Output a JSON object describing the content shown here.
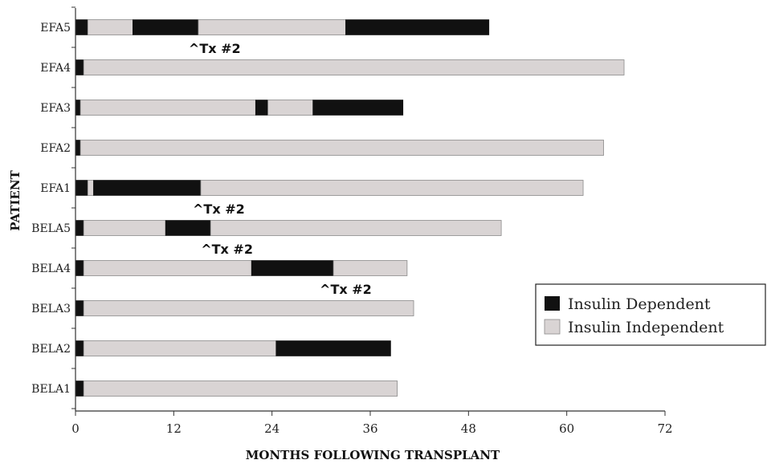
{
  "chart_data": {
    "type": "bar",
    "orientation": "horizontal",
    "stacked": true,
    "xlabel": "MONTHS FOLLOWING TRANSPLANT",
    "ylabel": "PATIENT",
    "xlim": [
      0,
      72
    ],
    "xticks": [
      0,
      12,
      24,
      36,
      48,
      60,
      72
    ],
    "categories": [
      "EFA5",
      "EFA4",
      "EFA3",
      "EFA2",
      "EFA1",
      "BELA5",
      "BELA4",
      "BELA3",
      "BELA2",
      "BELA1"
    ],
    "colors": {
      "Insulin Dependent": "#111111",
      "Insulin Independent": "#d9d4d4"
    },
    "legend": {
      "position": "right",
      "entries": [
        {
          "name": "Insulin Dependent",
          "color": "#111111"
        },
        {
          "name": "Insulin Independent",
          "color": "#d9d4d4"
        }
      ]
    },
    "rows": [
      {
        "patient": "EFA5",
        "segments": [
          {
            "status": "Insulin Dependent",
            "start": 0,
            "end": 1.5
          },
          {
            "status": "Insulin Independent",
            "start": 1.5,
            "end": 7
          },
          {
            "status": "Insulin Dependent",
            "start": 7,
            "end": 15
          },
          {
            "status": "Insulin Independent",
            "start": 15,
            "end": 33
          },
          {
            "status": "Insulin Dependent",
            "start": 33,
            "end": 50.5
          }
        ]
      },
      {
        "patient": "EFA4",
        "segments": [
          {
            "status": "Insulin Dependent",
            "start": 0,
            "end": 1
          },
          {
            "status": "Insulin Independent",
            "start": 1,
            "end": 67
          }
        ]
      },
      {
        "patient": "EFA3",
        "segments": [
          {
            "status": "Insulin Dependent",
            "start": 0,
            "end": 0.6
          },
          {
            "status": "Insulin Independent",
            "start": 0.6,
            "end": 22
          },
          {
            "status": "Insulin Dependent",
            "start": 22,
            "end": 23.5
          },
          {
            "status": "Insulin Independent",
            "start": 23.5,
            "end": 29
          },
          {
            "status": "Insulin Dependent",
            "start": 29,
            "end": 40
          }
        ]
      },
      {
        "patient": "EFA2",
        "segments": [
          {
            "status": "Insulin Dependent",
            "start": 0,
            "end": 0.6
          },
          {
            "status": "Insulin Independent",
            "start": 0.6,
            "end": 64.5
          }
        ]
      },
      {
        "patient": "EFA1",
        "segments": [
          {
            "status": "Insulin Dependent",
            "start": 0,
            "end": 1.5
          },
          {
            "status": "Insulin Independent",
            "start": 1.5,
            "end": 2.2
          },
          {
            "status": "Insulin Dependent",
            "start": 2.2,
            "end": 15.3
          },
          {
            "status": "Insulin Independent",
            "start": 15.3,
            "end": 62
          }
        ]
      },
      {
        "patient": "BELA5",
        "segments": [
          {
            "status": "Insulin Dependent",
            "start": 0,
            "end": 1
          },
          {
            "status": "Insulin Independent",
            "start": 1,
            "end": 11
          },
          {
            "status": "Insulin Dependent",
            "start": 11,
            "end": 16.5
          },
          {
            "status": "Insulin Independent",
            "start": 16.5,
            "end": 52
          }
        ]
      },
      {
        "patient": "BELA4",
        "segments": [
          {
            "status": "Insulin Dependent",
            "start": 0,
            "end": 1
          },
          {
            "status": "Insulin Independent",
            "start": 1,
            "end": 21.5
          },
          {
            "status": "Insulin Dependent",
            "start": 21.5,
            "end": 31.5
          },
          {
            "status": "Insulin Independent",
            "start": 31.5,
            "end": 40.5
          }
        ]
      },
      {
        "patient": "BELA3",
        "segments": [
          {
            "status": "Insulin Dependent",
            "start": 0,
            "end": 1
          },
          {
            "status": "Insulin Independent",
            "start": 1,
            "end": 41.3
          }
        ]
      },
      {
        "patient": "BELA2",
        "segments": [
          {
            "status": "Insulin Dependent",
            "start": 0,
            "end": 1
          },
          {
            "status": "Insulin Independent",
            "start": 1,
            "end": 24.5
          },
          {
            "status": "Insulin Dependent",
            "start": 24.5,
            "end": 38.5
          }
        ]
      },
      {
        "patient": "BELA1",
        "segments": [
          {
            "status": "Insulin Dependent",
            "start": 0,
            "end": 1
          },
          {
            "status": "Insulin Independent",
            "start": 1,
            "end": 39.3
          }
        ]
      }
    ],
    "annotations": [
      {
        "text": "^Tx #2",
        "patient": "EFA5",
        "x": 17
      },
      {
        "text": "^Tx #2",
        "patient": "EFA1",
        "x": 17.5
      },
      {
        "text": "^Tx #2",
        "patient": "BELA5",
        "x": 18.5
      },
      {
        "text": "^Tx #2",
        "patient": "BELA4",
        "x": 33
      }
    ]
  }
}
